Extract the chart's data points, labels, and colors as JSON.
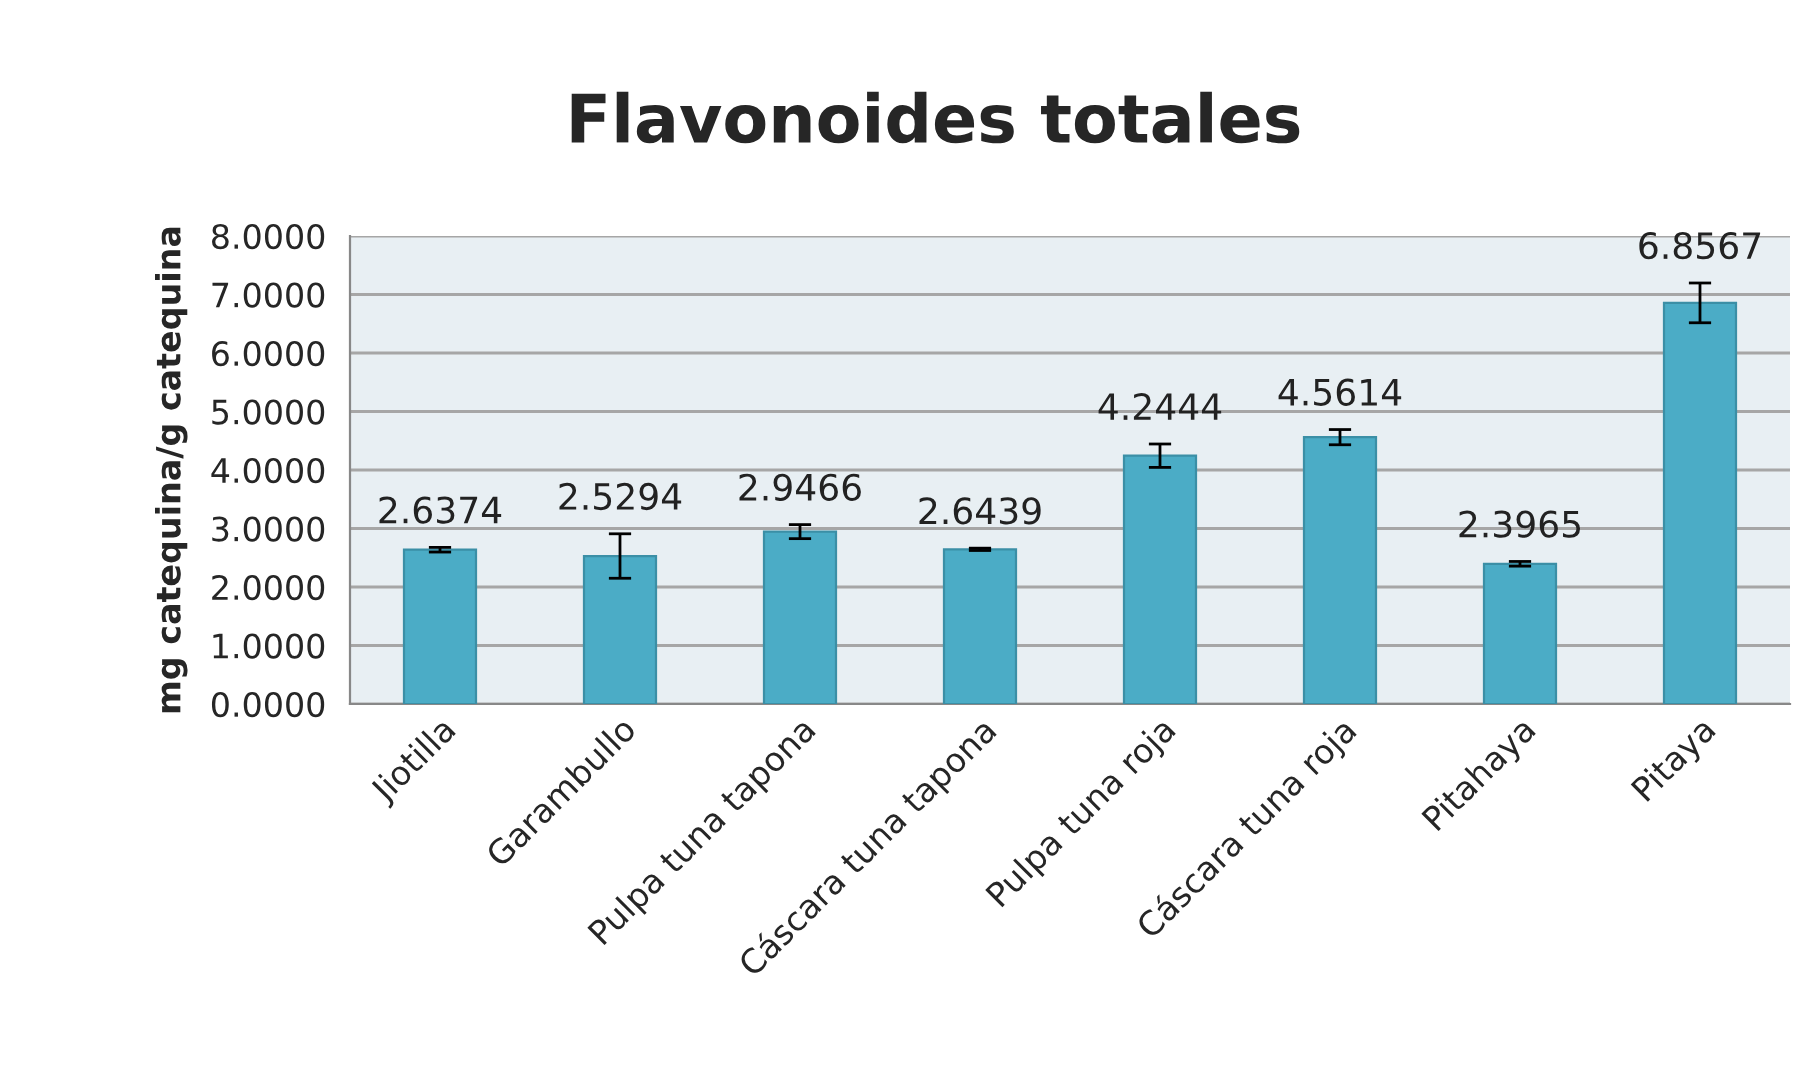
{
  "chart_data": {
    "type": "bar",
    "title": "Flavonoides totales",
    "ylabel": "mg catequina/g catequina",
    "categories": [
      "Jiotilla",
      "Garambullo",
      "Pulpa tuna tapona",
      "Cáscara tuna tapona",
      "Pulpa tuna roja",
      "Cáscara tuna roja",
      "Pitahaya",
      "Pitaya"
    ],
    "values": [
      2.6374,
      2.5294,
      2.9466,
      2.6439,
      4.2444,
      4.5614,
      2.3965,
      6.8567
    ],
    "errors": [
      0.04,
      0.38,
      0.12,
      0.02,
      0.2,
      0.13,
      0.04,
      0.34
    ],
    "color": "#4bacc6",
    "data_labels": true,
    "grid": "y",
    "legend": false,
    "ylim": [
      0,
      8
    ],
    "yticks": [
      {
        "value": 0,
        "label": "0.0000"
      },
      {
        "value": 1,
        "label": "1.0000"
      },
      {
        "value": 2,
        "label": "2.0000"
      },
      {
        "value": 3,
        "label": "3.0000"
      },
      {
        "value": 4,
        "label": "4.0000"
      },
      {
        "value": 5,
        "label": "5.0000"
      },
      {
        "value": 6,
        "label": "6.0000"
      },
      {
        "value": 7,
        "label": "7.0000"
      },
      {
        "value": 8,
        "label": "8.0000"
      }
    ]
  }
}
